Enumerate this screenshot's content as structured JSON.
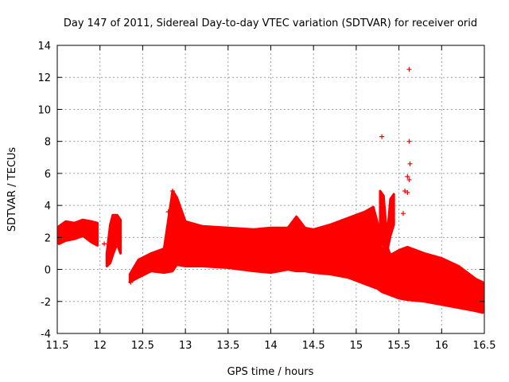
{
  "chart_data": {
    "type": "scatter",
    "title": "Day 147 of 2011, Sidereal Day-to-day VTEC variation (SDTVAR) for receiver orid",
    "xlabel": "GPS time / hours",
    "ylabel": "SDTVAR / TECUs",
    "xlim": [
      11.5,
      16.5
    ],
    "ylim": [
      -4,
      14
    ],
    "xticks": [
      11.5,
      12,
      12.5,
      13,
      13.5,
      14,
      14.5,
      15,
      15.5,
      16,
      16.5
    ],
    "xtick_labels": [
      "11.5",
      "12",
      "12.5",
      "13",
      "13.5",
      "14",
      "14.5",
      "15",
      "15.5",
      "16",
      "16.5"
    ],
    "yticks": [
      -4,
      -2,
      0,
      2,
      4,
      6,
      8,
      10,
      12,
      14
    ],
    "ytick_labels": [
      "-4",
      "-2",
      "0",
      "2",
      "4",
      "6",
      "8",
      "10",
      "12",
      "14"
    ],
    "grid": true,
    "marker": "+",
    "color": "#ff0000",
    "band_segments": [
      {
        "name": "segment-1",
        "x": [
          11.52,
          11.6,
          11.7,
          11.8,
          11.9,
          11.97
        ],
        "upper": [
          2.7,
          3.0,
          2.9,
          3.1,
          3.0,
          2.9
        ],
        "lower": [
          1.6,
          1.8,
          1.9,
          2.1,
          1.7,
          1.5
        ]
      },
      {
        "name": "segment-2",
        "x": [
          12.08,
          12.12,
          12.15,
          12.2,
          12.24
        ],
        "upper": [
          1.0,
          2.8,
          3.4,
          3.4,
          3.1
        ],
        "lower": [
          0.2,
          0.4,
          0.9,
          1.6,
          1.0
        ]
      },
      {
        "name": "segment-3",
        "x": [
          12.35,
          12.45,
          12.6,
          12.75,
          12.85,
          12.9,
          13.0,
          13.2,
          13.5,
          13.8,
          14.0,
          14.2,
          14.3,
          14.4,
          14.5,
          14.7,
          14.9,
          15.0,
          15.1,
          15.2,
          15.25,
          15.3,
          15.35,
          15.4,
          15.5,
          15.6,
          15.8,
          16.0,
          16.2,
          16.4,
          16.48
        ],
        "upper": [
          -0.3,
          0.6,
          1.0,
          1.3,
          4.9,
          4.5,
          3.0,
          2.7,
          2.6,
          2.5,
          2.6,
          2.6,
          3.3,
          2.6,
          2.5,
          2.8,
          3.2,
          3.4,
          3.6,
          3.9,
          2.9,
          1.2,
          1.6,
          0.9,
          1.2,
          1.4,
          1.0,
          0.7,
          0.2,
          -0.6,
          -0.8
        ],
        "lower": [
          -0.8,
          -0.5,
          -0.1,
          -0.2,
          -0.1,
          0.3,
          0.2,
          0.2,
          0.1,
          -0.1,
          -0.2,
          0.0,
          -0.1,
          -0.1,
          -0.2,
          -0.3,
          -0.5,
          -0.7,
          -0.9,
          -1.1,
          -1.2,
          -1.4,
          -1.5,
          -1.6,
          -1.8,
          -1.9,
          -2.0,
          -2.2,
          -2.4,
          -2.6,
          -2.7
        ]
      },
      {
        "name": "segment-4",
        "x": [
          15.28,
          15.32,
          15.36,
          15.4,
          15.44
        ],
        "upper": [
          4.9,
          4.6,
          2.0,
          4.4,
          4.7
        ],
        "lower": [
          2.0,
          1.5,
          1.1,
          2.1,
          2.8
        ]
      }
    ],
    "outliers": [
      {
        "x": 15.62,
        "y": 12.5
      },
      {
        "x": 15.3,
        "y": 8.3
      },
      {
        "x": 15.62,
        "y": 8.0
      },
      {
        "x": 15.63,
        "y": 6.6
      },
      {
        "x": 15.6,
        "y": 5.8
      },
      {
        "x": 15.62,
        "y": 5.6
      },
      {
        "x": 15.6,
        "y": 4.8
      },
      {
        "x": 15.55,
        "y": 3.5
      },
      {
        "x": 15.57,
        "y": 4.9
      },
      {
        "x": 12.85,
        "y": 4.9
      },
      {
        "x": 12.8,
        "y": 3.6
      },
      {
        "x": 12.05,
        "y": 1.6
      },
      {
        "x": 12.36,
        "y": -0.8
      }
    ]
  }
}
